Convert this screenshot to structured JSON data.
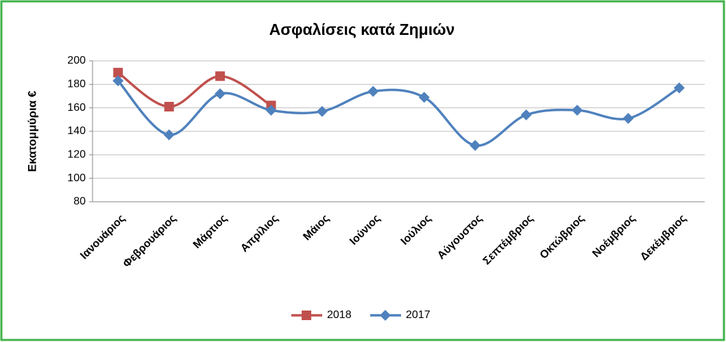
{
  "chart_data": {
    "type": "line",
    "title": "Ασφαλίσεις κατά Ζημιών",
    "y_label": "Εκατομμύρια  €",
    "categories": [
      "Ιανουάριος",
      "Φεβρουάριος",
      "Μάρτιος",
      "Απρίλιος",
      "Μάιος",
      "Ιούνιος",
      "Ιούλιος",
      "Αύγουστος",
      "Σεπτέμβριος",
      "Οκτώβριος",
      "Νοέμβριος",
      "Δεκέμβριος"
    ],
    "series": [
      {
        "name": "2018",
        "color": "#c0504d",
        "marker": "square",
        "values": [
          190,
          161,
          187,
          162,
          null,
          null,
          null,
          null,
          null,
          null,
          null,
          null
        ]
      },
      {
        "name": "2017",
        "color": "#4f81bd",
        "marker": "diamond",
        "values": [
          183,
          137,
          172,
          158,
          157,
          174,
          169,
          128,
          154,
          158,
          151,
          177
        ]
      }
    ],
    "ylim": [
      80,
      200
    ],
    "yticks": [
      80,
      100,
      120,
      140,
      160,
      180,
      200
    ],
    "grid": true,
    "smooth": true,
    "legend": "bottom"
  }
}
